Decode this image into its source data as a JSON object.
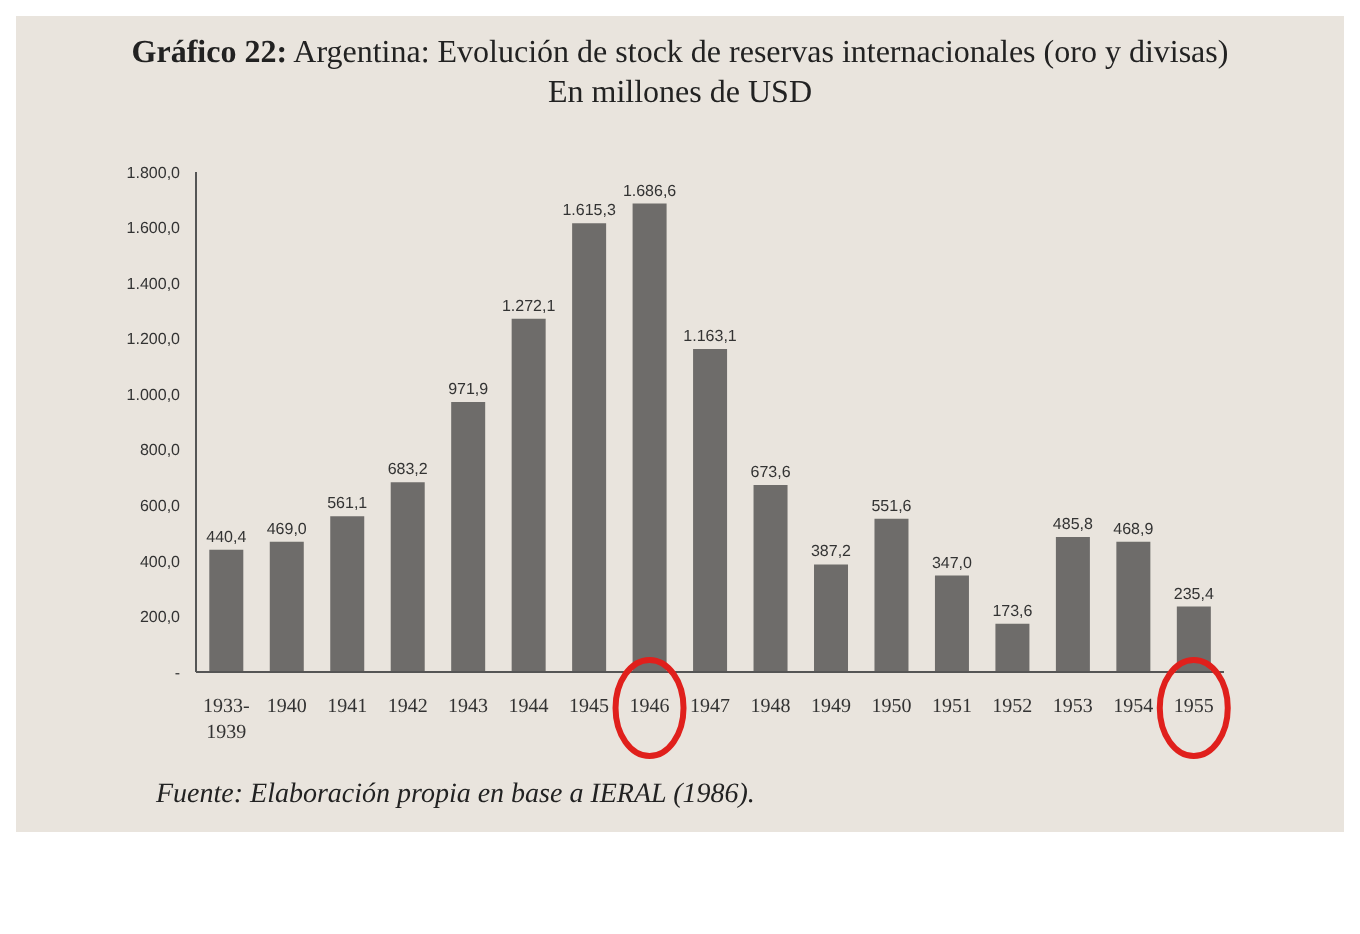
{
  "chart_data": {
    "type": "bar",
    "title": "Gráfico 22: Argentina: Evolución de stock de reservas internacionales (oro y divisas)",
    "subtitle": "En millones de USD",
    "categories": [
      "1933-1939",
      "1940",
      "1941",
      "1942",
      "1943",
      "1944",
      "1945",
      "1946",
      "1947",
      "1948",
      "1949",
      "1950",
      "1951",
      "1952",
      "1953",
      "1954",
      "1955"
    ],
    "values": [
      440.4,
      469.0,
      561.1,
      683.2,
      971.9,
      1272.1,
      1615.3,
      1686.6,
      1163.1,
      673.6,
      387.2,
      551.6,
      347.0,
      173.6,
      485.8,
      468.9,
      235.4
    ],
    "value_labels": [
      "440,4",
      "469,0",
      "561,1",
      "683,2",
      "971,9",
      "1.272,1",
      "1.615,3",
      "1.686,6",
      "1.163,1",
      "673,6",
      "387,2",
      "551,6",
      "347,0",
      "173,6",
      "485,8",
      "468,9",
      "235,4"
    ],
    "color": "#6e6c6a",
    "ylim": [
      0,
      1800
    ],
    "yticks": [
      {
        "value": 0,
        "label": "-"
      },
      {
        "value": 200,
        "label": "200,0"
      },
      {
        "value": 400,
        "label": "400,0"
      },
      {
        "value": 600,
        "label": "600,0"
      },
      {
        "value": 800,
        "label": "800,0"
      },
      {
        "value": 1000,
        "label": "1.000,0"
      },
      {
        "value": 1200,
        "label": "1.200,0"
      },
      {
        "value": 1400,
        "label": "1.400,0"
      },
      {
        "value": 1600,
        "label": "1.600,0"
      },
      {
        "value": 1800,
        "label": "1.800,0"
      }
    ],
    "grid": false,
    "annotations": [
      "Fuente: Elaboración propia en base a IERAL (1986)."
    ]
  }
}
